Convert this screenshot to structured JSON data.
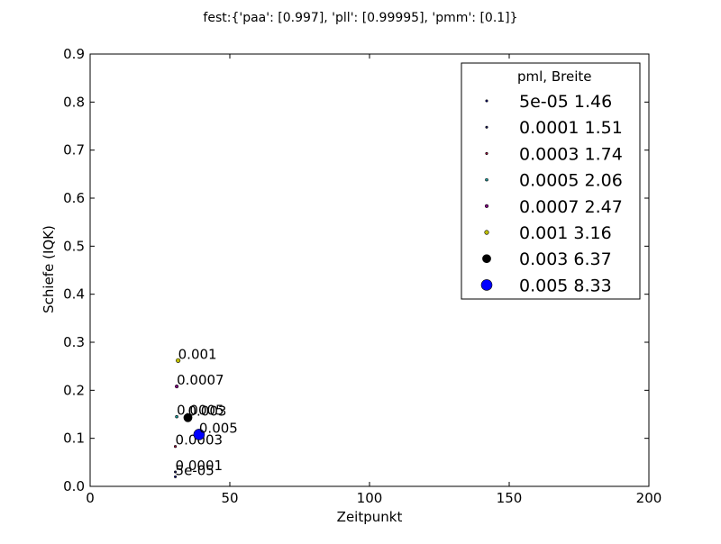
{
  "chart_data": {
    "type": "scatter",
    "title": "fest:{'paa': [0.997], 'pll': [0.99995], 'pmm': [0.1]}",
    "xlabel": "Zeitpunkt",
    "ylabel": "Schiefe (IQK)",
    "xlim": [
      0,
      200
    ],
    "ylim": [
      0,
      0.9
    ],
    "x_ticks": [
      "0",
      "50",
      "100",
      "150",
      "200"
    ],
    "y_ticks": [
      "0.0",
      "0.1",
      "0.2",
      "0.3",
      "0.4",
      "0.5",
      "0.6",
      "0.7",
      "0.8",
      "0.9"
    ],
    "grid": false,
    "legend": {
      "placement": "top-right",
      "header": "pml,    Breite",
      "columns": [
        "pml",
        "Breite"
      ]
    },
    "series": [
      {
        "name": "5e-05",
        "breite": "1.46",
        "x": 30.5,
        "y": 0.02,
        "label": "5e-05",
        "color": "#00007f"
      },
      {
        "name": "0.0001",
        "breite": "1.51",
        "x": 30.5,
        "y": 0.03,
        "label": "0.0001",
        "color": "#1a1a60"
      },
      {
        "name": "0.0003",
        "breite": "1.74",
        "x": 30.5,
        "y": 0.083,
        "label": "0.0003",
        "color": "#a01040"
      },
      {
        "name": "0.0005",
        "breite": "2.06",
        "x": 31,
        "y": 0.145,
        "label": "0.0005",
        "color": "#20a0a0"
      },
      {
        "name": "0.0007",
        "breite": "2.47",
        "x": 31,
        "y": 0.208,
        "label": "0.0007",
        "color": "#800080"
      },
      {
        "name": "0.001",
        "breite": "3.16",
        "x": 31.5,
        "y": 0.262,
        "label": "0.001",
        "color": "#bfbf00"
      },
      {
        "name": "0.003",
        "breite": "6.37",
        "x": 35,
        "y": 0.143,
        "label": "0.003",
        "color": "#000000"
      },
      {
        "name": "0.005",
        "breite": "8.33",
        "x": 39,
        "y": 0.108,
        "label": "0.005",
        "color": "#0000ff"
      }
    ]
  }
}
